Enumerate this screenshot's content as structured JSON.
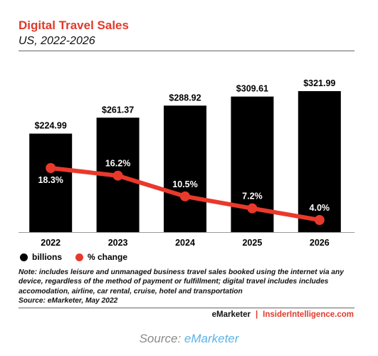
{
  "header": {
    "title": "Digital Travel Sales",
    "subtitle": "US, 2022-2026"
  },
  "chart_data": {
    "type": "bar",
    "categories": [
      "2022",
      "2023",
      "2024",
      "2025",
      "2026"
    ],
    "series": [
      {
        "name": "billions",
        "type": "bar",
        "values": [
          224.99,
          261.37,
          288.92,
          309.61,
          321.99
        ],
        "labels": [
          "$224.99",
          "$261.37",
          "$288.92",
          "$309.61",
          "$321.99"
        ],
        "color": "#000000"
      },
      {
        "name": "% change",
        "type": "line",
        "values": [
          18.3,
          16.2,
          10.5,
          7.2,
          4.0
        ],
        "labels": [
          "18.3%",
          "16.2%",
          "10.5%",
          "7.2%",
          "4.0%"
        ],
        "color": "#e8392b"
      }
    ],
    "grid": false,
    "legend_position": "bottom-left"
  },
  "legend": {
    "billions": "billions",
    "pct": "% change"
  },
  "note": {
    "line1": "Note: includes leisure and unmanaged business travel sales booked using the internet via any",
    "line2": "device, regardless of the method of payment or fulfillment; digital travel includes includes",
    "line3": "accomodation, airline, car rental, cruise, hotel and transportation",
    "source": "Source: eMarketer, May 2022"
  },
  "brand": {
    "left": "eMarketer",
    "sep": "|",
    "right": "InsiderIntelligence.com"
  },
  "caption": {
    "prefix": "Source: ",
    "link": "eMarketer"
  }
}
